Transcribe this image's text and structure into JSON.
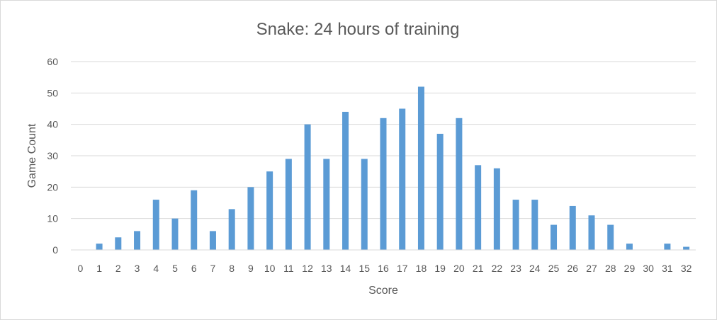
{
  "chart_data": {
    "type": "bar",
    "title": "Snake: 24 hours of training",
    "xlabel": "Score",
    "ylabel": "Game Count",
    "ylim": [
      0,
      60
    ],
    "yticks": [
      0,
      10,
      20,
      30,
      40,
      50,
      60
    ],
    "grid": true,
    "legend": "none",
    "bar_color": "#5b9bd5",
    "categories": [
      "0",
      "1",
      "2",
      "3",
      "4",
      "5",
      "6",
      "7",
      "8",
      "9",
      "10",
      "11",
      "12",
      "13",
      "14",
      "15",
      "16",
      "17",
      "18",
      "19",
      "20",
      "21",
      "22",
      "23",
      "24",
      "25",
      "26",
      "27",
      "28",
      "29",
      "30",
      "31",
      "32"
    ],
    "values": [
      0,
      2,
      4,
      6,
      16,
      10,
      19,
      6,
      13,
      20,
      25,
      29,
      40,
      29,
      44,
      29,
      42,
      45,
      52,
      37,
      42,
      27,
      26,
      16,
      16,
      8,
      14,
      11,
      8,
      2,
      0,
      2,
      1
    ]
  }
}
